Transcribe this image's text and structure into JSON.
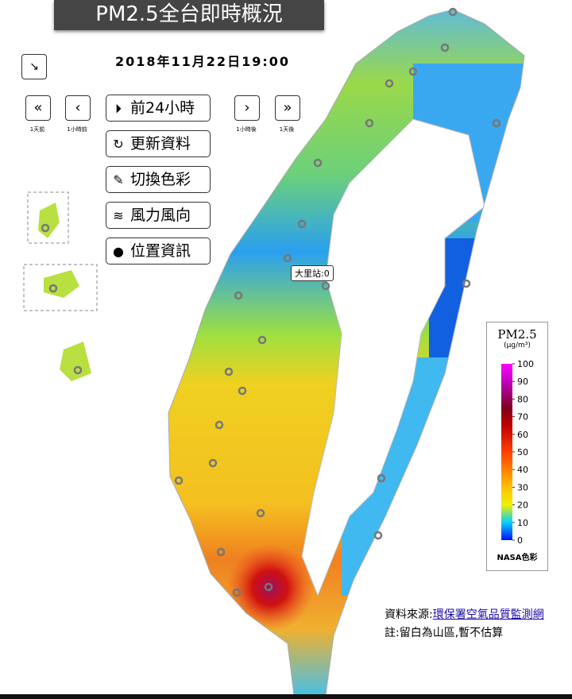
{
  "header": {
    "title": "PM2.5全台即時概況",
    "datetime": "2018年11月22日19:00"
  },
  "nav": {
    "back_day": "1天前",
    "back_hour": "1小時前",
    "forward_hour": "1小時後",
    "forward_day": "1天後"
  },
  "buttons": [
    "前24小時",
    "更新資料",
    "切換色彩",
    "風力風向",
    "位置資訊"
  ],
  "tooltip": "大里站:0",
  "legend": {
    "title": "PM2.5",
    "unit": "(μg/m³)",
    "ticks": [
      100,
      90,
      80,
      70,
      60,
      50,
      40,
      30,
      20,
      10,
      0
    ],
    "footer": "NASA色彩"
  },
  "source": {
    "label": "資料來源:",
    "link": "環保署空氣品質監測網",
    "note": "註:留白為山區,暫不估算"
  }
}
